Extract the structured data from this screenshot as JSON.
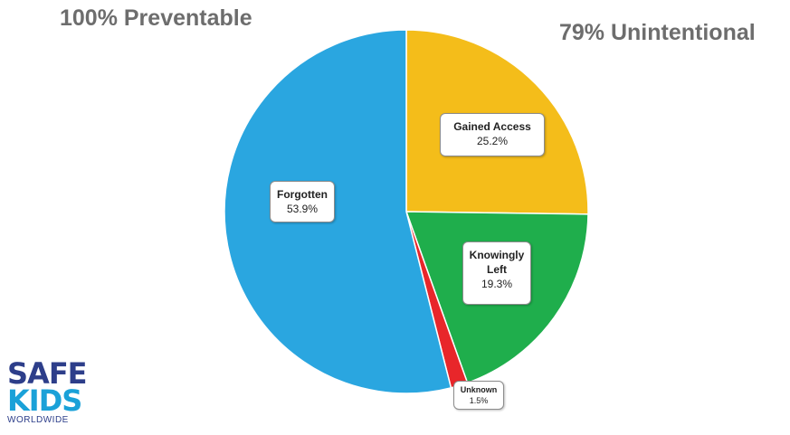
{
  "headlines": {
    "left": "100% Preventable",
    "right": "79% Unintentional"
  },
  "logo": {
    "line1": "SAFE",
    "line2": "KIDS",
    "line3": "WORLDWIDE"
  },
  "chart_data": {
    "type": "pie",
    "title": "",
    "start_angle_deg": 0,
    "direction": "clockwise",
    "slices": [
      {
        "name": "Gained Access",
        "value": 25.2,
        "label": "25.2%",
        "color": "#f4bd1a"
      },
      {
        "name": "Knowingly Left",
        "value": 19.3,
        "label": "19.3%",
        "color": "#1fae4c"
      },
      {
        "name": "Unknown",
        "value": 1.5,
        "label": "1.5%",
        "color": "#e8262a"
      },
      {
        "name": "Forgotten",
        "value": 53.9,
        "label": "53.9%",
        "color": "#2aa6e0"
      }
    ],
    "legend": "none",
    "data_labels": "callout boxes"
  }
}
